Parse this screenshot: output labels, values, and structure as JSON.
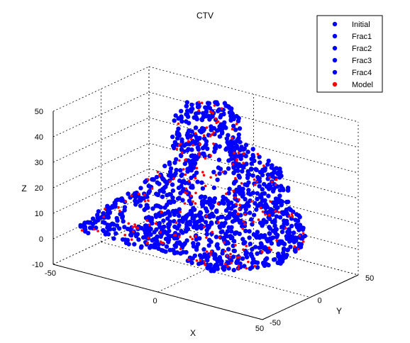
{
  "chart_data": {
    "type": "scatter",
    "title": "CTV",
    "xlabel": "X",
    "ylabel": "Y",
    "zlabel": "Z",
    "xlim": [
      -50,
      50
    ],
    "ylim": [
      -50,
      50
    ],
    "zlim": [
      -10,
      50
    ],
    "xticks": [
      "-50",
      "0",
      "50"
    ],
    "yticks": [
      "-50",
      "0",
      "50"
    ],
    "zticks": [
      "-10",
      "0",
      "10",
      "20",
      "30",
      "40",
      "50"
    ],
    "grid": true,
    "legend_position": "top-right",
    "series": [
      {
        "name": "Initial",
        "color": "#0000ff"
      },
      {
        "name": "Frac1",
        "color": "#0000ff"
      },
      {
        "name": "Frac2",
        "color": "#0000ff"
      },
      {
        "name": "Frac3",
        "color": "#0000ff"
      },
      {
        "name": "Frac4",
        "color": "#0000ff"
      },
      {
        "name": "Model",
        "color": "#ff0000"
      }
    ]
  }
}
